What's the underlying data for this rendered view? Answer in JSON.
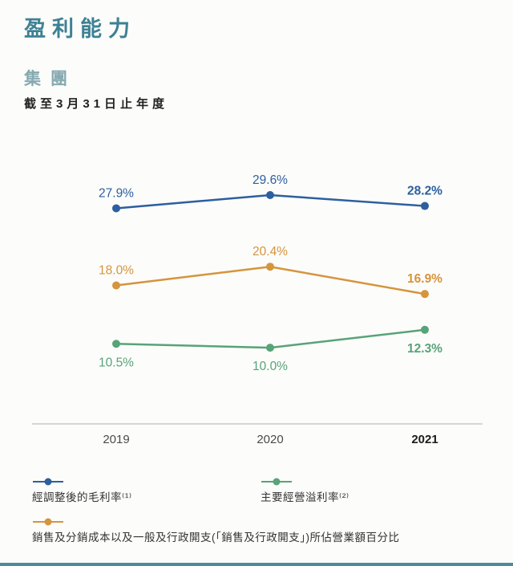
{
  "header": {
    "title": "盈利能力",
    "subtitle": "集團",
    "period": "截至3月31日止年度"
  },
  "chart_data": {
    "type": "line",
    "categories": [
      "2019",
      "2020",
      "2021"
    ],
    "series": [
      {
        "name": "經調整後的毛利率(1)",
        "color": "#2d5f9e",
        "values": [
          27.9,
          29.6,
          28.2
        ],
        "labels": [
          "27.9%",
          "29.6%",
          "28.2%"
        ],
        "label_position": "above"
      },
      {
        "name": "銷售及分銷成本以及一般及行政開支(「銷售及行政開支」)所佔營業額百分比",
        "color": "#d6943c",
        "values": [
          18.0,
          20.4,
          16.9
        ],
        "labels": [
          "18.0%",
          "20.4%",
          "16.9%"
        ],
        "label_position": "above"
      },
      {
        "name": "主要經營溢利率(2)",
        "color": "#58a377",
        "values": [
          10.5,
          10.0,
          12.3
        ],
        "labels": [
          "10.5%",
          "10.0%",
          "12.3%"
        ],
        "label_position": "below"
      }
    ],
    "ylim": [
      5,
      33
    ],
    "grid": false,
    "legend_position": "bottom",
    "x_axis_bold_label": "2021"
  },
  "legend": {
    "items": [
      {
        "label": "經調整後的毛利率⁽¹⁾",
        "color": "#2d5f9e"
      },
      {
        "label": "主要經營溢利率⁽²⁾",
        "color": "#58a377"
      },
      {
        "label": "銷售及分銷成本以及一般及行政開支(「銷售及行政開支」)所佔營業額百分比",
        "color": "#d6943c"
      }
    ]
  },
  "colors": {
    "title": "#3d8193",
    "subtitle": "#87a9b0",
    "axis_line": "#c9c9c9",
    "tick_label": "#4a4a4a",
    "tick_label_bold": "#1c1c1c",
    "accent_rule": "#4b8c99"
  }
}
